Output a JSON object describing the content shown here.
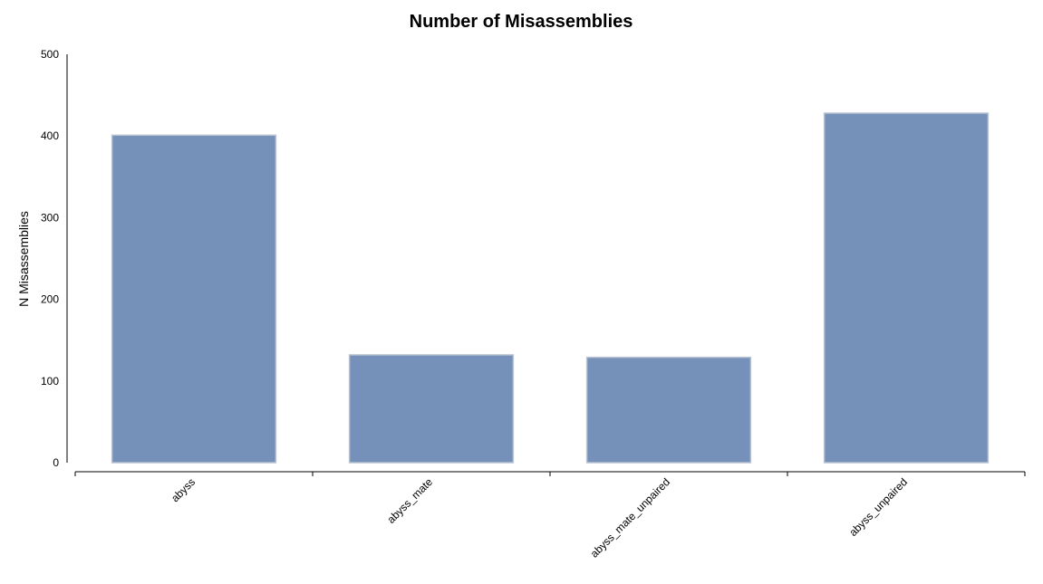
{
  "chart_data": {
    "type": "bar",
    "title": "Number of Misassemblies",
    "xlabel": "",
    "ylabel": "N Misassemblies",
    "categories": [
      "abyss",
      "abyss_mate",
      "abyss_mate_unpaired",
      "abyss_unpaired"
    ],
    "values": [
      401,
      132,
      129,
      428
    ],
    "ylim": [
      0,
      500
    ],
    "yticks": [
      0,
      100,
      200,
      300,
      400,
      500
    ],
    "grid": false,
    "legend": "none",
    "colors": {
      "bar": "#7591b9",
      "bar_edge": "#b9c3d2"
    }
  }
}
